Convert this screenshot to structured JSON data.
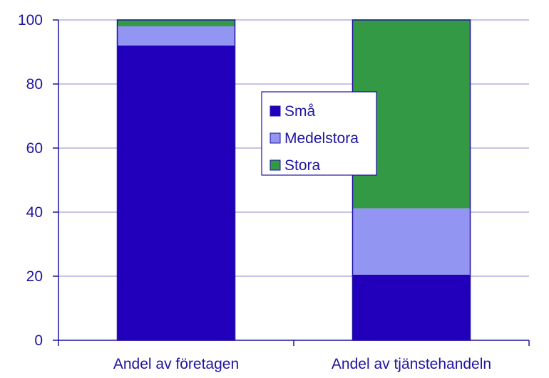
{
  "chart_data": {
    "type": "bar",
    "stacked": true,
    "categories": [
      "Andel av företagen",
      "Andel av tjänstehandeln"
    ],
    "series": [
      {
        "name": "Små",
        "values": [
          92,
          20.5
        ]
      },
      {
        "name": "Medelstora",
        "values": [
          6,
          20.7
        ]
      },
      {
        "name": "Stora",
        "values": [
          2,
          58.8
        ]
      }
    ],
    "ylim": [
      0,
      100
    ],
    "yticks": [
      0,
      20,
      40,
      60,
      80,
      100
    ],
    "grid": true,
    "legend": "center"
  },
  "colors": {
    "Små": "#2200bb",
    "Medelstora": "#9296f2",
    "Stora": "#339944",
    "axis": "#1e14a0",
    "grid": "#b3b0e0"
  }
}
